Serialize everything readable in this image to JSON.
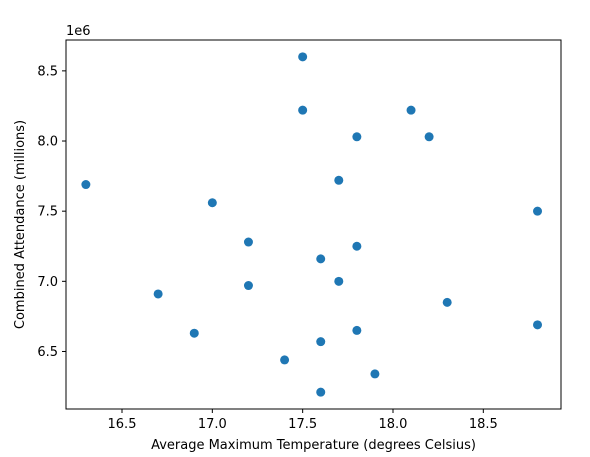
{
  "chart_data": {
    "type": "scatter",
    "title": "",
    "xlabel": "Average Maximum Temperature (degrees Celsius)",
    "ylabel": "Combined Attendance (millions)",
    "y_offset_label": "1e6",
    "xlim": [
      16.19,
      18.93
    ],
    "ylim": [
      6.09,
      8.72
    ],
    "x_ticks": [
      16.5,
      17.0,
      17.5,
      18.0,
      18.5
    ],
    "x_tick_labels": [
      "16.5",
      "17.0",
      "17.5",
      "18.0",
      "18.5"
    ],
    "y_ticks": [
      6.5,
      7.0,
      7.5,
      8.0,
      8.5
    ],
    "y_tick_labels": [
      "6.5",
      "7.0",
      "7.5",
      "8.0",
      "8.5"
    ],
    "grid": false,
    "marker_color": "#1f77b4",
    "points": [
      {
        "x": 17.5,
        "y": 8.6
      },
      {
        "x": 17.5,
        "y": 8.22
      },
      {
        "x": 18.1,
        "y": 8.22
      },
      {
        "x": 17.8,
        "y": 8.03
      },
      {
        "x": 18.2,
        "y": 8.03
      },
      {
        "x": 16.3,
        "y": 7.69
      },
      {
        "x": 17.7,
        "y": 7.72
      },
      {
        "x": 17.0,
        "y": 7.56
      },
      {
        "x": 18.8,
        "y": 7.5
      },
      {
        "x": 17.2,
        "y": 7.28
      },
      {
        "x": 17.8,
        "y": 7.25
      },
      {
        "x": 17.6,
        "y": 7.16
      },
      {
        "x": 17.7,
        "y": 7.0
      },
      {
        "x": 17.2,
        "y": 6.97
      },
      {
        "x": 16.7,
        "y": 6.91
      },
      {
        "x": 18.3,
        "y": 6.85
      },
      {
        "x": 18.8,
        "y": 6.69
      },
      {
        "x": 17.8,
        "y": 6.65
      },
      {
        "x": 16.9,
        "y": 6.63
      },
      {
        "x": 17.6,
        "y": 6.57
      },
      {
        "x": 17.4,
        "y": 6.44
      },
      {
        "x": 17.9,
        "y": 6.34
      },
      {
        "x": 17.6,
        "y": 6.21
      }
    ]
  }
}
